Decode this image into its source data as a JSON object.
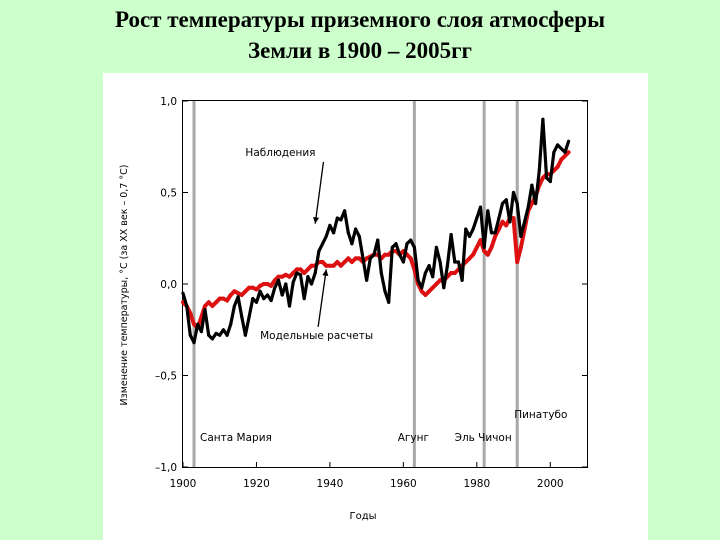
{
  "slide": {
    "title_line1": "Рост температуры приземного слоя атмосферы",
    "title_line2": "Земли в 1900 – 2005гг"
  },
  "chart_data": {
    "type": "line",
    "xlabel": "Годы",
    "ylabel": "Изменение температуры, °С (за XX век – 0,7 °С)",
    "xlim": [
      1900,
      2010
    ],
    "ylim": [
      -1.0,
      1.0
    ],
    "x_ticks": [
      1900,
      1920,
      1940,
      1960,
      1980,
      2000
    ],
    "x_tick_labels": [
      "1900",
      "1920",
      "1940",
      "1960",
      "1980",
      "2000"
    ],
    "y_ticks": [
      1.0,
      0.5,
      0.0,
      -0.5,
      -1.0
    ],
    "y_tick_labels": [
      "1,0",
      "0,5",
      "0,0",
      "–0,5",
      "–1,0"
    ],
    "colors": {
      "observations": "#000000",
      "model": "#dd1111",
      "eruption_line": "#a8a8a8"
    },
    "series": [
      {
        "name": "Наблюдения",
        "color": "#000000",
        "x": [
          1900,
          1901,
          1902,
          1903,
          1904,
          1905,
          1906,
          1907,
          1908,
          1909,
          1910,
          1911,
          1912,
          1913,
          1914,
          1915,
          1916,
          1917,
          1918,
          1919,
          1920,
          1921,
          1922,
          1923,
          1924,
          1925,
          1926,
          1927,
          1928,
          1929,
          1930,
          1931,
          1932,
          1933,
          1934,
          1935,
          1936,
          1937,
          1938,
          1939,
          1940,
          1941,
          1942,
          1943,
          1944,
          1945,
          1946,
          1947,
          1948,
          1949,
          1950,
          1951,
          1952,
          1953,
          1954,
          1955,
          1956,
          1957,
          1958,
          1959,
          1960,
          1961,
          1962,
          1963,
          1964,
          1965,
          1966,
          1967,
          1968,
          1969,
          1970,
          1971,
          1972,
          1973,
          1974,
          1975,
          1976,
          1977,
          1978,
          1979,
          1980,
          1981,
          1982,
          1983,
          1984,
          1985,
          1986,
          1987,
          1988,
          1989,
          1990,
          1991,
          1992,
          1993,
          1994,
          1995,
          1996,
          1997,
          1998,
          1999,
          2000,
          2001,
          2002,
          2003,
          2004,
          2005
        ],
        "values": [
          -0.05,
          -0.12,
          -0.28,
          -0.32,
          -0.22,
          -0.26,
          -0.14,
          -0.28,
          -0.3,
          -0.27,
          -0.28,
          -0.25,
          -0.28,
          -0.22,
          -0.12,
          -0.07,
          -0.18,
          -0.28,
          -0.18,
          -0.08,
          -0.1,
          -0.04,
          -0.08,
          -0.06,
          -0.09,
          -0.02,
          0.02,
          -0.06,
          0.0,
          -0.12,
          0.01,
          0.06,
          0.05,
          -0.08,
          0.04,
          0.0,
          0.06,
          0.18,
          0.22,
          0.26,
          0.32,
          0.28,
          0.36,
          0.35,
          0.4,
          0.28,
          0.22,
          0.3,
          0.26,
          0.14,
          0.02,
          0.14,
          0.16,
          0.24,
          0.06,
          -0.04,
          -0.1,
          0.2,
          0.22,
          0.16,
          0.12,
          0.22,
          0.24,
          0.2,
          0.02,
          -0.02,
          0.06,
          0.1,
          0.04,
          0.2,
          0.12,
          -0.02,
          0.1,
          0.27,
          0.12,
          0.12,
          0.02,
          0.3,
          0.26,
          0.3,
          0.36,
          0.42,
          0.2,
          0.4,
          0.28,
          0.28,
          0.36,
          0.44,
          0.46,
          0.34,
          0.5,
          0.44,
          0.26,
          0.34,
          0.42,
          0.54,
          0.44,
          0.62,
          0.9,
          0.58,
          0.56,
          0.72,
          0.76,
          0.74,
          0.72,
          0.78
        ]
      },
      {
        "name": "Модельные расчеты",
        "color": "#dd1111",
        "x": [
          1900,
          1901,
          1902,
          1903,
          1904,
          1905,
          1906,
          1907,
          1908,
          1909,
          1910,
          1911,
          1912,
          1913,
          1914,
          1915,
          1916,
          1917,
          1918,
          1919,
          1920,
          1921,
          1922,
          1923,
          1924,
          1925,
          1926,
          1927,
          1928,
          1929,
          1930,
          1931,
          1932,
          1933,
          1934,
          1935,
          1936,
          1937,
          1938,
          1939,
          1940,
          1941,
          1942,
          1943,
          1944,
          1945,
          1946,
          1947,
          1948,
          1949,
          1950,
          1951,
          1952,
          1953,
          1954,
          1955,
          1956,
          1957,
          1958,
          1959,
          1960,
          1961,
          1962,
          1963,
          1964,
          1965,
          1966,
          1967,
          1968,
          1969,
          1970,
          1971,
          1972,
          1973,
          1974,
          1975,
          1976,
          1977,
          1978,
          1979,
          1980,
          1981,
          1982,
          1983,
          1984,
          1985,
          1986,
          1987,
          1988,
          1989,
          1990,
          1991,
          1992,
          1993,
          1994,
          1995,
          1996,
          1997,
          1998,
          1999,
          2000,
          2001,
          2002,
          2003,
          2004,
          2005
        ],
        "values": [
          -0.1,
          -0.12,
          -0.16,
          -0.22,
          -0.24,
          -0.18,
          -0.12,
          -0.1,
          -0.12,
          -0.1,
          -0.08,
          -0.08,
          -0.09,
          -0.06,
          -0.04,
          -0.05,
          -0.06,
          -0.04,
          -0.02,
          -0.02,
          -0.03,
          -0.01,
          0.0,
          0.0,
          -0.01,
          0.02,
          0.04,
          0.04,
          0.05,
          0.04,
          0.06,
          0.08,
          0.08,
          0.06,
          0.08,
          0.1,
          0.1,
          0.12,
          0.12,
          0.1,
          0.1,
          0.1,
          0.12,
          0.1,
          0.12,
          0.14,
          0.12,
          0.14,
          0.14,
          0.12,
          0.14,
          0.15,
          0.16,
          0.16,
          0.14,
          0.16,
          0.16,
          0.18,
          0.18,
          0.16,
          0.18,
          0.16,
          0.14,
          0.08,
          0.0,
          -0.04,
          -0.06,
          -0.04,
          -0.02,
          0.0,
          0.02,
          0.02,
          0.04,
          0.06,
          0.06,
          0.08,
          0.1,
          0.12,
          0.14,
          0.16,
          0.2,
          0.24,
          0.18,
          0.16,
          0.2,
          0.26,
          0.3,
          0.34,
          0.32,
          0.36,
          0.36,
          0.12,
          0.2,
          0.3,
          0.4,
          0.44,
          0.48,
          0.54,
          0.58,
          0.6,
          0.6,
          0.62,
          0.64,
          0.68,
          0.7,
          0.72
        ]
      }
    ],
    "annotations": [
      {
        "text": "Наблюдения",
        "x": 1917,
        "y": 0.7,
        "arrow_to": [
          1936,
          0.33
        ]
      },
      {
        "text": "Модельные расчеты",
        "x": 1921,
        "y": -0.3,
        "arrow_to": [
          1939,
          0.08
        ]
      }
    ],
    "eruptions": [
      {
        "name": "Санта Мария",
        "year": 1903
      },
      {
        "name": "Агунг",
        "year": 1963
      },
      {
        "name": "Эль Чичон",
        "year": 1982
      },
      {
        "name": "Пинатубо",
        "year": 1991
      }
    ]
  }
}
